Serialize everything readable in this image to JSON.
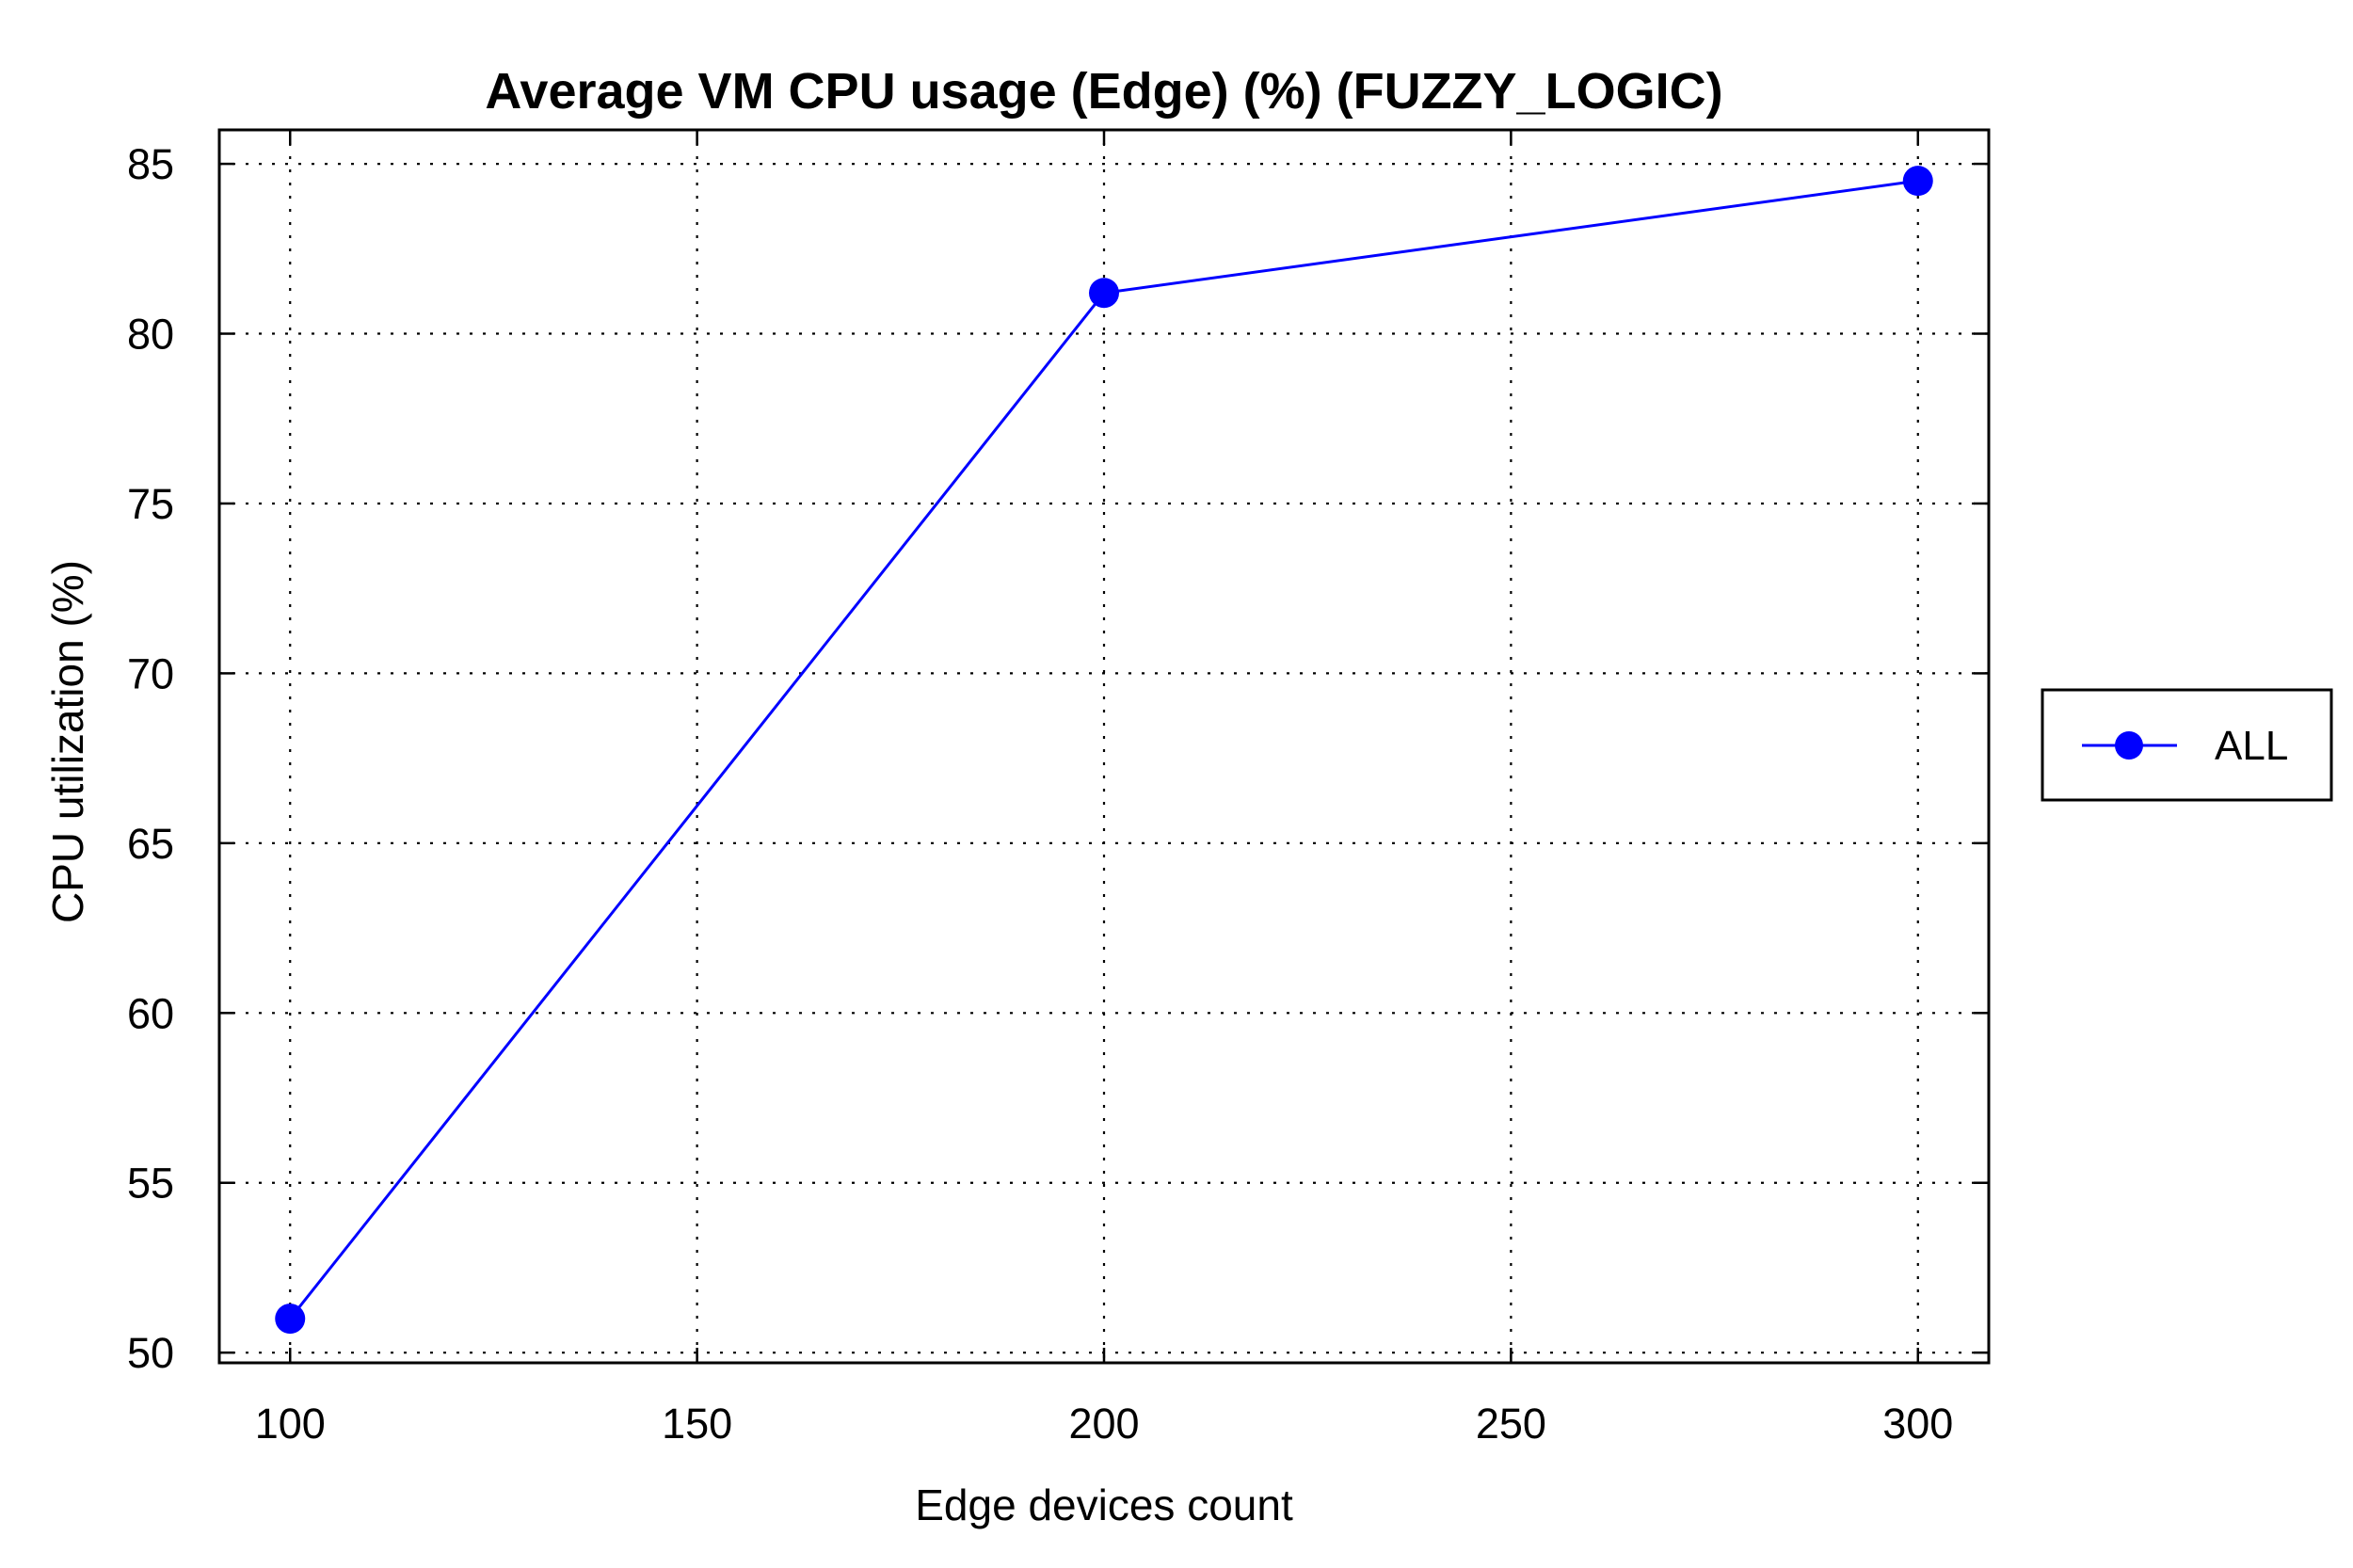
{
  "chart_data": {
    "type": "line",
    "title": "Average VM CPU usage (Edge) (%) (FUZZY_LOGIC)",
    "xlabel": "Edge devices count",
    "ylabel": "CPU utilization (%)",
    "x": [
      100,
      200,
      300
    ],
    "series": [
      {
        "name": "ALL",
        "values": [
          51.0,
          81.2,
          84.5
        ],
        "color": "#0000ff",
        "marker": "circle"
      }
    ],
    "xticks": [
      "100",
      "150",
      "200",
      "250",
      "300"
    ],
    "yticks": [
      "50",
      "55",
      "60",
      "65",
      "70",
      "75",
      "80",
      "85"
    ],
    "xlim": [
      91.3,
      308.7
    ],
    "ylim": [
      49.7,
      86.0
    ],
    "grid": true,
    "legend_position": "outside-right"
  }
}
